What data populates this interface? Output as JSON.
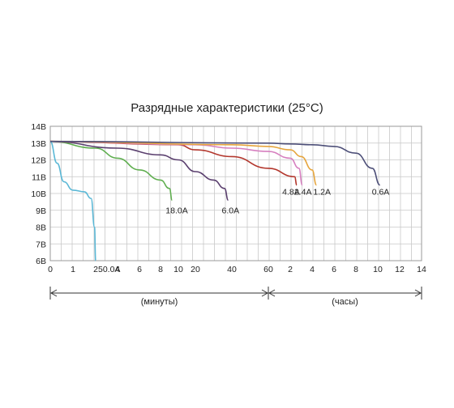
{
  "chart_data": {
    "type": "line",
    "title": "Разрядные характеристики (25°C)",
    "y_tick_labels": [
      "14В",
      "13В",
      "12В",
      "11В",
      "10В",
      "9В",
      "8В",
      "7В",
      "6В"
    ],
    "x_tick_labels": [
      "0",
      "1",
      "2",
      "4",
      "6",
      "8",
      "10",
      "20",
      "40",
      "60",
      "2",
      "4",
      "6",
      "8",
      "10",
      "12",
      "14"
    ],
    "ylim": [
      6,
      14
    ],
    "grid": true,
    "x_axis_segments": [
      {
        "label": "(минуты)",
        "from_tick": "0",
        "to_tick": "60"
      },
      {
        "label": "(часы)",
        "from_tick": "60",
        "to_tick": "14"
      }
    ],
    "series": [
      {
        "name": "50.0A",
        "color": "#5bb8d6",
        "points": [
          [
            0,
            13.1
          ],
          [
            0.3,
            11.8
          ],
          [
            0.6,
            10.7
          ],
          [
            1,
            10.2
          ],
          [
            1.5,
            10.1
          ],
          [
            1.8,
            9.7
          ],
          [
            1.95,
            8.0
          ],
          [
            2.0,
            6.0
          ]
        ]
      },
      {
        "name": "18.0A",
        "color": "#5fae4f",
        "points": [
          [
            0,
            13.1
          ],
          [
            2,
            12.7
          ],
          [
            4,
            12.1
          ],
          [
            6,
            11.4
          ],
          [
            8,
            10.8
          ],
          [
            9,
            10.3
          ],
          [
            9.3,
            9.6
          ]
        ]
      },
      {
        "name": "6.0A",
        "color": "#5a3f6e",
        "points": [
          [
            0,
            13.1
          ],
          [
            4,
            12.7
          ],
          [
            8,
            12.3
          ],
          [
            10,
            12.0
          ],
          [
            20,
            11.3
          ],
          [
            30,
            10.8
          ],
          [
            36,
            10.3
          ],
          [
            38,
            9.6
          ]
        ]
      },
      {
        "name": "4.8A",
        "color": "#b3372d",
        "points": [
          [
            0,
            13.1
          ],
          [
            10,
            12.9
          ],
          [
            20,
            12.6
          ],
          [
            40,
            12.2
          ],
          [
            60,
            11.5
          ],
          [
            2.4,
            11.0
          ],
          [
            2.6,
            10.5
          ]
        ]
      },
      {
        "name": "2.4A",
        "color": "#d67fbf",
        "points": [
          [
            0,
            13.1
          ],
          [
            20,
            12.9
          ],
          [
            40,
            12.7
          ],
          [
            60,
            12.5
          ],
          [
            2,
            12.1
          ],
          [
            2.8,
            11.5
          ],
          [
            3.1,
            10.5
          ]
        ]
      },
      {
        "name": "1.2A",
        "color": "#e6a53d",
        "points": [
          [
            0,
            13.1
          ],
          [
            40,
            12.9
          ],
          [
            60,
            12.8
          ],
          [
            2,
            12.6
          ],
          [
            3,
            12.2
          ],
          [
            4,
            11.4
          ],
          [
            4.4,
            10.5
          ]
        ]
      },
      {
        "name": "0.6A",
        "color": "#4d4f78",
        "points": [
          [
            0,
            13.1
          ],
          [
            60,
            13.0
          ],
          [
            2,
            12.95
          ],
          [
            4,
            12.9
          ],
          [
            6,
            12.8
          ],
          [
            8,
            12.4
          ],
          [
            9.5,
            11.5
          ],
          [
            10.2,
            10.5
          ]
        ]
      }
    ]
  }
}
